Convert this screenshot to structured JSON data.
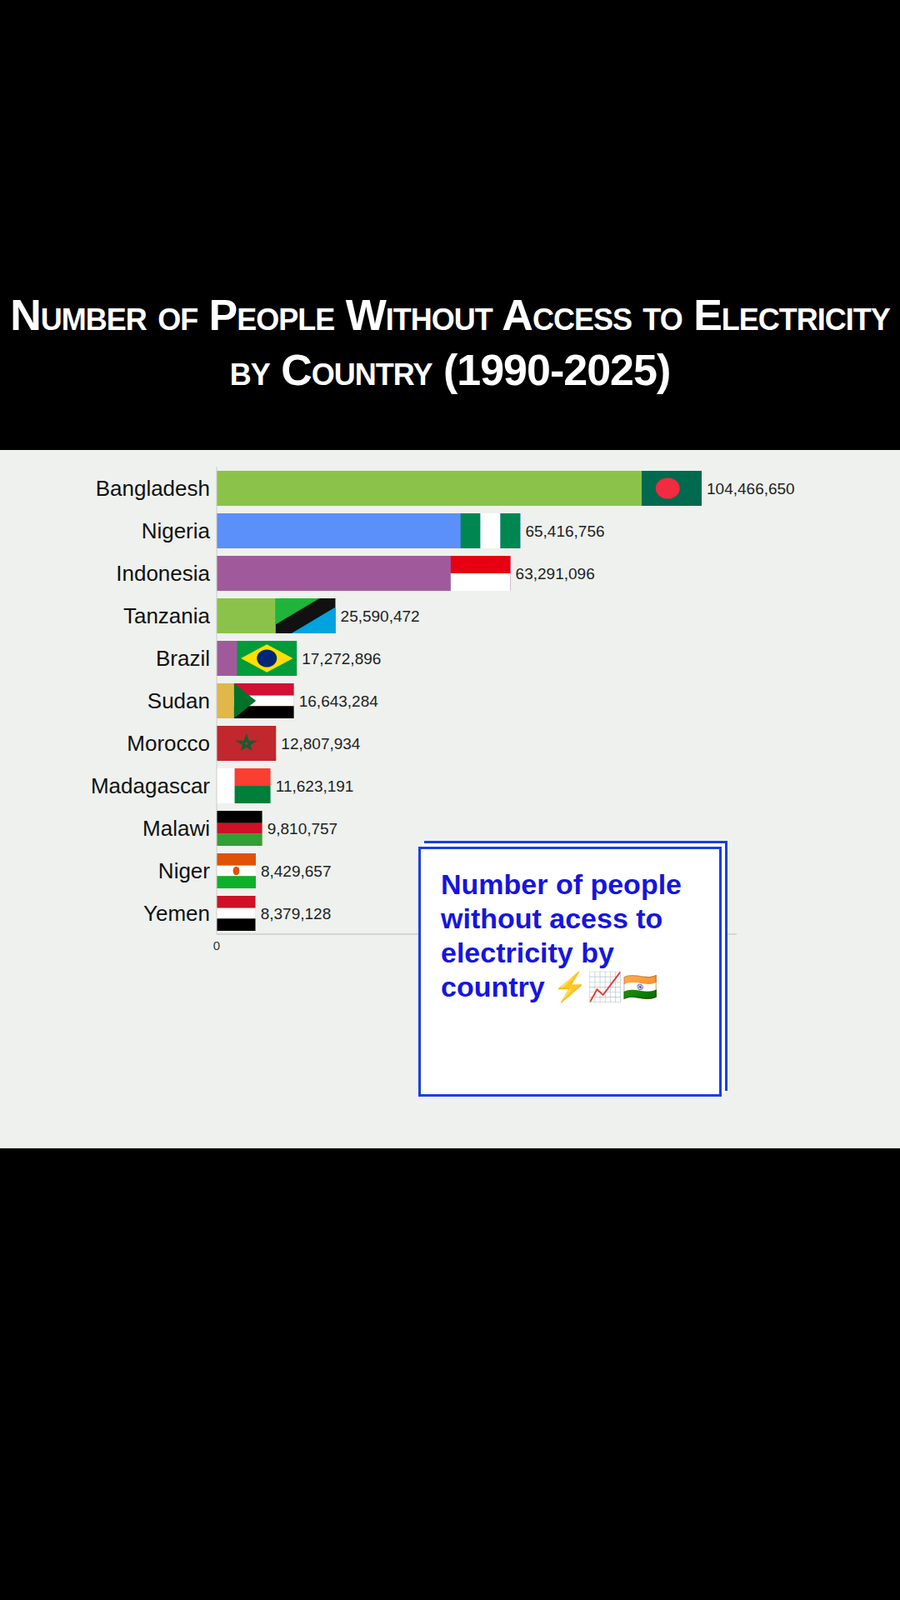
{
  "chart_data": {
    "type": "bar",
    "orientation": "horizontal",
    "title": "Number of People Without Access to Electricity by Country (1990-2025)",
    "annotations": [
      "Number of people without acess to electricity by country ⚡📈🇮🇳"
    ],
    "categories": [
      "Bangladesh",
      "Nigeria",
      "Indonesia",
      "Tanzania",
      "Brazil",
      "Sudan",
      "Morocco",
      "Madagascar",
      "Malawi",
      "Niger",
      "Yemen"
    ],
    "values": [
      104466650,
      65416756,
      63291096,
      25590472,
      17272896,
      16643284,
      12807934,
      11623191,
      9810757,
      8429657,
      8379128
    ],
    "value_labels": [
      "104,466,650",
      "65,416,756",
      "63,291,096",
      "25,590,472",
      "17,272,896",
      "16,643,284",
      "12,807,934",
      "11,623,191",
      "9,810,757",
      "8,429,657",
      "8,379,128"
    ],
    "colors": [
      "#8bc34a",
      "#5b8ff9",
      "#a05a9c",
      "#8bc34a",
      "#a05a9c",
      "#e0b84a",
      "#f0a58a",
      "#f5f5f5",
      "#8bc34a",
      "#f5a05a",
      "#d8d8d8"
    ],
    "xlim": [
      0,
      112000000
    ],
    "xticks": [
      0
    ],
    "grid": false,
    "data_labels": true
  }
}
